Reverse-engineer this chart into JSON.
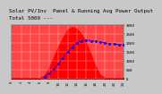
{
  "title_line1": "Solar PV/Inv  Panel & Running Avg Power Output",
  "title_line2": "Total 5000 ---",
  "bg_color": "#c8c8c8",
  "plot_bg_color": "#ff4444",
  "red_fill_color": "#ff0000",
  "blue_line_color": "#0000ff",
  "grid_color": "#ffffff",
  "x_hours": [
    0,
    1,
    2,
    3,
    4,
    5,
    6,
    7,
    8,
    9,
    10,
    11,
    12,
    13,
    14,
    15,
    16,
    17,
    18,
    19,
    20,
    21,
    22,
    23,
    24
  ],
  "pv_values": [
    0,
    0,
    0,
    0,
    0,
    0,
    10,
    120,
    550,
    1150,
    1750,
    2250,
    2700,
    2850,
    2750,
    2450,
    1950,
    1300,
    650,
    180,
    20,
    0,
    0,
    0,
    0
  ],
  "avg_values": [
    null,
    null,
    null,
    null,
    null,
    null,
    null,
    100,
    280,
    520,
    820,
    1150,
    1480,
    1750,
    1980,
    2100,
    2150,
    2100,
    2060,
    2020,
    1980,
    1950,
    1920,
    1890,
    1860
  ],
  "ymax": 3000,
  "ymin": 0,
  "yticks": [
    0,
    500,
    1000,
    1500,
    2000,
    2500,
    3000
  ],
  "xtick_step": 2,
  "title_fontsize": 4.2,
  "tick_fontsize": 3.0,
  "linewidth_avg": 0.7,
  "marker_size": 1.0
}
